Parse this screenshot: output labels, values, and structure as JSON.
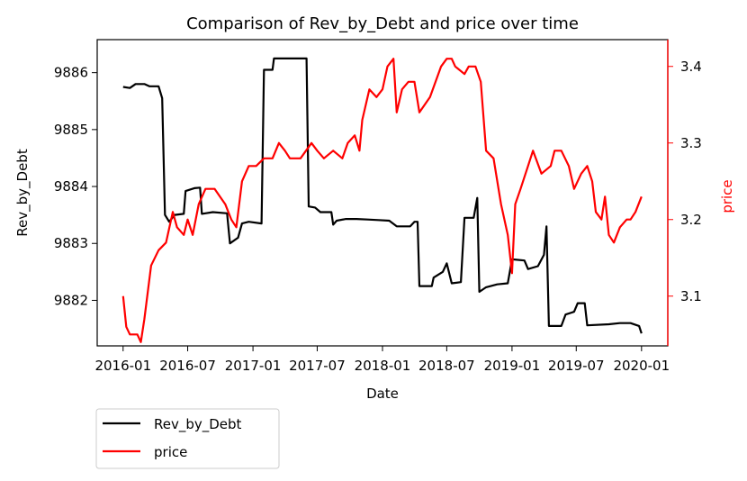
{
  "chart_data": {
    "type": "line",
    "title": "Comparison of Rev_by_Debt and price over time",
    "xlabel": "Date",
    "ylabel_left": "Rev_by_Debt",
    "ylabel_right": "price",
    "x_ticks": [
      "2016-01",
      "2016-07",
      "2017-01",
      "2017-07",
      "2018-01",
      "2018-07",
      "2019-01",
      "2019-07",
      "2020-01"
    ],
    "y_left_ticks": [
      "9882",
      "9883",
      "9884",
      "9885",
      "9886"
    ],
    "y_right_ticks": [
      "3.1",
      "3.2",
      "3.3",
      "3.4"
    ],
    "y_left_range": [
      9881.2,
      9886.58
    ],
    "y_right_range": [
      3.035,
      3.435
    ],
    "x_range": [
      "2015-10-20",
      "2020-03-15"
    ],
    "grid": false,
    "legend_position": "below-left",
    "series": [
      {
        "name": "Rev_by_Debt",
        "axis": "left",
        "color": "#000000",
        "points": [
          [
            "2016-01-01",
            9885.75
          ],
          [
            "2016-01-20",
            9885.73
          ],
          [
            "2016-02-05",
            9885.8
          ],
          [
            "2016-03-01",
            9885.8
          ],
          [
            "2016-03-15",
            9885.76
          ],
          [
            "2016-04-10",
            9885.76
          ],
          [
            "2016-04-20",
            9885.55
          ],
          [
            "2016-04-28",
            9883.5
          ],
          [
            "2016-05-10",
            9883.38
          ],
          [
            "2016-05-25",
            9883.5
          ],
          [
            "2016-06-20",
            9883.52
          ],
          [
            "2016-06-25",
            9883.92
          ],
          [
            "2016-07-20",
            9883.97
          ],
          [
            "2016-08-05",
            9883.98
          ],
          [
            "2016-08-10",
            9883.52
          ],
          [
            "2016-09-10",
            9883.55
          ],
          [
            "2016-10-20",
            9883.53
          ],
          [
            "2016-10-28",
            9883.0
          ],
          [
            "2016-11-20",
            9883.1
          ],
          [
            "2016-12-01",
            9883.35
          ],
          [
            "2016-12-20",
            9883.38
          ],
          [
            "2017-01-25",
            9883.35
          ],
          [
            "2017-02-01",
            9886.05
          ],
          [
            "2017-02-25",
            9886.05
          ],
          [
            "2017-03-01",
            9886.25
          ],
          [
            "2017-04-01",
            9886.25
          ],
          [
            "2017-05-01",
            9886.25
          ],
          [
            "2017-06-01",
            9886.25
          ],
          [
            "2017-06-07",
            9883.65
          ],
          [
            "2017-06-25",
            9883.63
          ],
          [
            "2017-07-10",
            9883.55
          ],
          [
            "2017-08-10",
            9883.55
          ],
          [
            "2017-08-15",
            9883.33
          ],
          [
            "2017-08-25",
            9883.4
          ],
          [
            "2017-09-20",
            9883.43
          ],
          [
            "2017-10-20",
            9883.43
          ],
          [
            "2017-11-20",
            9883.42
          ],
          [
            "2017-12-20",
            9883.41
          ],
          [
            "2018-01-20",
            9883.4
          ],
          [
            "2018-02-10",
            9883.3
          ],
          [
            "2018-03-20",
            9883.3
          ],
          [
            "2018-04-01",
            9883.38
          ],
          [
            "2018-04-10",
            9883.38
          ],
          [
            "2018-04-15",
            9882.25
          ],
          [
            "2018-05-20",
            9882.25
          ],
          [
            "2018-05-25",
            9882.4
          ],
          [
            "2018-06-20",
            9882.5
          ],
          [
            "2018-07-01",
            9882.65
          ],
          [
            "2018-07-15",
            9882.3
          ],
          [
            "2018-08-10",
            9882.32
          ],
          [
            "2018-08-20",
            9883.45
          ],
          [
            "2018-09-15",
            9883.45
          ],
          [
            "2018-09-25",
            9883.8
          ],
          [
            "2018-10-01",
            9882.15
          ],
          [
            "2018-10-20",
            9882.23
          ],
          [
            "2018-11-20",
            9882.28
          ],
          [
            "2018-12-20",
            9882.3
          ],
          [
            "2019-01-01",
            9882.72
          ],
          [
            "2019-02-05",
            9882.7
          ],
          [
            "2019-02-15",
            9882.55
          ],
          [
            "2019-03-15",
            9882.6
          ],
          [
            "2019-04-01",
            9882.8
          ],
          [
            "2019-04-08",
            9883.3
          ],
          [
            "2019-04-15",
            9881.55
          ],
          [
            "2019-05-20",
            9881.55
          ],
          [
            "2019-06-01",
            9881.75
          ],
          [
            "2019-06-25",
            9881.8
          ],
          [
            "2019-07-05",
            9881.95
          ],
          [
            "2019-07-25",
            9881.95
          ],
          [
            "2019-08-01",
            9881.56
          ],
          [
            "2019-10-01",
            9881.58
          ],
          [
            "2019-11-01",
            9881.6
          ],
          [
            "2019-12-01",
            9881.6
          ],
          [
            "2019-12-25",
            9881.55
          ],
          [
            "2020-01-01",
            9881.42
          ]
        ]
      },
      {
        "name": "price",
        "axis": "right",
        "color": "#ff0000",
        "points": [
          [
            "2016-01-01",
            3.1
          ],
          [
            "2016-01-10",
            3.06
          ],
          [
            "2016-01-20",
            3.05
          ],
          [
            "2016-02-10",
            3.05
          ],
          [
            "2016-02-20",
            3.04
          ],
          [
            "2016-03-01",
            3.07
          ],
          [
            "2016-03-20",
            3.14
          ],
          [
            "2016-04-10",
            3.16
          ],
          [
            "2016-05-01",
            3.17
          ],
          [
            "2016-05-20",
            3.21
          ],
          [
            "2016-06-01",
            3.19
          ],
          [
            "2016-06-20",
            3.18
          ],
          [
            "2016-07-01",
            3.2
          ],
          [
            "2016-07-15",
            3.18
          ],
          [
            "2016-08-01",
            3.22
          ],
          [
            "2016-08-20",
            3.24
          ],
          [
            "2016-09-15",
            3.24
          ],
          [
            "2016-10-15",
            3.22
          ],
          [
            "2016-11-01",
            3.2
          ],
          [
            "2016-11-15",
            3.19
          ],
          [
            "2016-12-01",
            3.25
          ],
          [
            "2016-12-20",
            3.27
          ],
          [
            "2017-01-10",
            3.27
          ],
          [
            "2017-02-01",
            3.28
          ],
          [
            "2017-02-25",
            3.28
          ],
          [
            "2017-03-15",
            3.3
          ],
          [
            "2017-04-01",
            3.29
          ],
          [
            "2017-04-15",
            3.28
          ],
          [
            "2017-05-15",
            3.28
          ],
          [
            "2017-06-15",
            3.3
          ],
          [
            "2017-07-01",
            3.29
          ],
          [
            "2017-07-20",
            3.28
          ],
          [
            "2017-08-15",
            3.29
          ],
          [
            "2017-09-10",
            3.28
          ],
          [
            "2017-09-25",
            3.3
          ],
          [
            "2017-10-15",
            3.31
          ],
          [
            "2017-10-28",
            3.29
          ],
          [
            "2017-11-05",
            3.33
          ],
          [
            "2017-11-25",
            3.37
          ],
          [
            "2017-12-15",
            3.36
          ],
          [
            "2018-01-01",
            3.37
          ],
          [
            "2018-01-15",
            3.4
          ],
          [
            "2018-02-01",
            3.41
          ],
          [
            "2018-02-10",
            3.34
          ],
          [
            "2018-02-25",
            3.37
          ],
          [
            "2018-03-15",
            3.38
          ],
          [
            "2018-04-01",
            3.38
          ],
          [
            "2018-04-15",
            3.34
          ],
          [
            "2018-05-15",
            3.36
          ],
          [
            "2018-06-15",
            3.4
          ],
          [
            "2018-07-01",
            3.41
          ],
          [
            "2018-07-15",
            3.41
          ],
          [
            "2018-07-25",
            3.4
          ],
          [
            "2018-08-20",
            3.39
          ],
          [
            "2018-09-01",
            3.4
          ],
          [
            "2018-09-20",
            3.4
          ],
          [
            "2018-10-05",
            3.38
          ],
          [
            "2018-10-20",
            3.29
          ],
          [
            "2018-11-10",
            3.28
          ],
          [
            "2018-12-01",
            3.22
          ],
          [
            "2018-12-20",
            3.18
          ],
          [
            "2019-01-01",
            3.13
          ],
          [
            "2019-01-10",
            3.22
          ],
          [
            "2019-01-25",
            3.24
          ],
          [
            "2019-02-15",
            3.27
          ],
          [
            "2019-03-01",
            3.29
          ],
          [
            "2019-03-25",
            3.26
          ],
          [
            "2019-04-20",
            3.27
          ],
          [
            "2019-05-01",
            3.29
          ],
          [
            "2019-05-20",
            3.29
          ],
          [
            "2019-06-10",
            3.27
          ],
          [
            "2019-06-25",
            3.24
          ],
          [
            "2019-07-15",
            3.26
          ],
          [
            "2019-08-01",
            3.27
          ],
          [
            "2019-08-15",
            3.25
          ],
          [
            "2019-08-25",
            3.21
          ],
          [
            "2019-09-10",
            3.2
          ],
          [
            "2019-09-20",
            3.23
          ],
          [
            "2019-10-01",
            3.18
          ],
          [
            "2019-10-15",
            3.17
          ],
          [
            "2019-11-01",
            3.19
          ],
          [
            "2019-11-20",
            3.2
          ],
          [
            "2019-12-01",
            3.2
          ],
          [
            "2019-12-15",
            3.21
          ],
          [
            "2020-01-01",
            3.23
          ]
        ]
      }
    ]
  }
}
